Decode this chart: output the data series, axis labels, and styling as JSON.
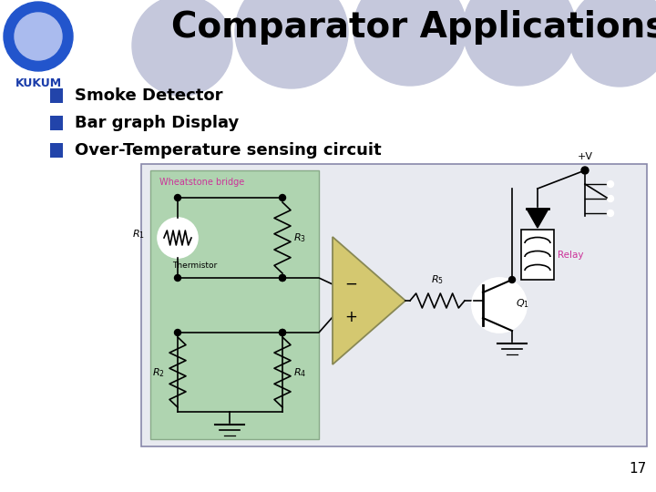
{
  "title": "Comparator Applications",
  "title_fontsize": 28,
  "title_color": "#000000",
  "bg_color": "#ffffff",
  "bullet_items": [
    "Smoke Detector",
    "Bar graph Display",
    "Over-Temperature sensing circuit"
  ],
  "bullet_color": "#2244aa",
  "bullet_fontsize": 13,
  "page_number": "17",
  "logo_text": "KUKUM",
  "logo_color": "#1a3caa",
  "header_bg_circles_color": "#c5c8dc",
  "wheatstone_box_color": "#afd4b0",
  "wheatstone_label_color": "#cc3399",
  "circuit_bg_color": "#e8eaf0",
  "opamp_color": "#d4c870",
  "relay_label_color": "#cc3399"
}
